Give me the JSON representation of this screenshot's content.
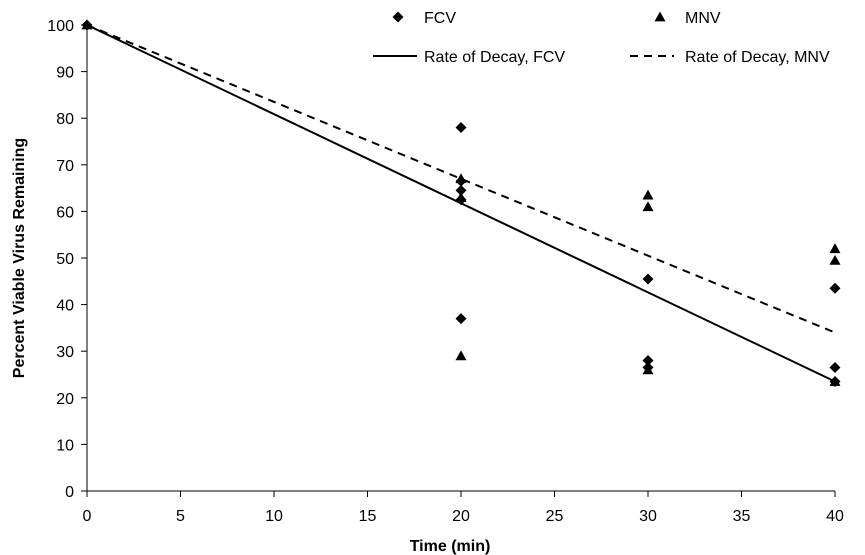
{
  "chart_data": {
    "type": "scatter",
    "xlabel": "Time (min)",
    "ylabel": "Percent Viable Virus Remaining",
    "xlim": [
      0,
      40
    ],
    "ylim": [
      0,
      100
    ],
    "x_ticks": [
      0,
      5,
      10,
      15,
      20,
      25,
      30,
      35,
      40
    ],
    "y_ticks": [
      0,
      10,
      20,
      30,
      40,
      50,
      60,
      70,
      80,
      90,
      100
    ],
    "grid": false,
    "legend_position": "top-right",
    "series": [
      {
        "name": "FCV",
        "kind": "points",
        "marker": "diamond",
        "points": [
          [
            0,
            100
          ],
          [
            20,
            78
          ],
          [
            20,
            66.5
          ],
          [
            20,
            64.5
          ],
          [
            20,
            62.5
          ],
          [
            20,
            37
          ],
          [
            30,
            45.5
          ],
          [
            30,
            28
          ],
          [
            30,
            26.5
          ],
          [
            40,
            43.5
          ],
          [
            40,
            26.5
          ],
          [
            40,
            23.5
          ]
        ]
      },
      {
        "name": "MNV",
        "kind": "points",
        "marker": "triangle",
        "points": [
          [
            0,
            100
          ],
          [
            20,
            67
          ],
          [
            20,
            63
          ],
          [
            20,
            29
          ],
          [
            30,
            63.5
          ],
          [
            30,
            61
          ],
          [
            30,
            26
          ],
          [
            40,
            52
          ],
          [
            40,
            49.5
          ],
          [
            40,
            23.5
          ]
        ]
      },
      {
        "name": "Rate of Decay, FCV",
        "kind": "line",
        "style": "solid",
        "points": [
          [
            0,
            100
          ],
          [
            40,
            23.5
          ]
        ]
      },
      {
        "name": "Rate of Decay, MNV",
        "kind": "line",
        "style": "dashed",
        "points": [
          [
            0,
            100
          ],
          [
            40,
            34
          ]
        ]
      }
    ],
    "colors": {
      "marker": "#000000",
      "line": "#000000",
      "background": "#ffffff"
    }
  }
}
